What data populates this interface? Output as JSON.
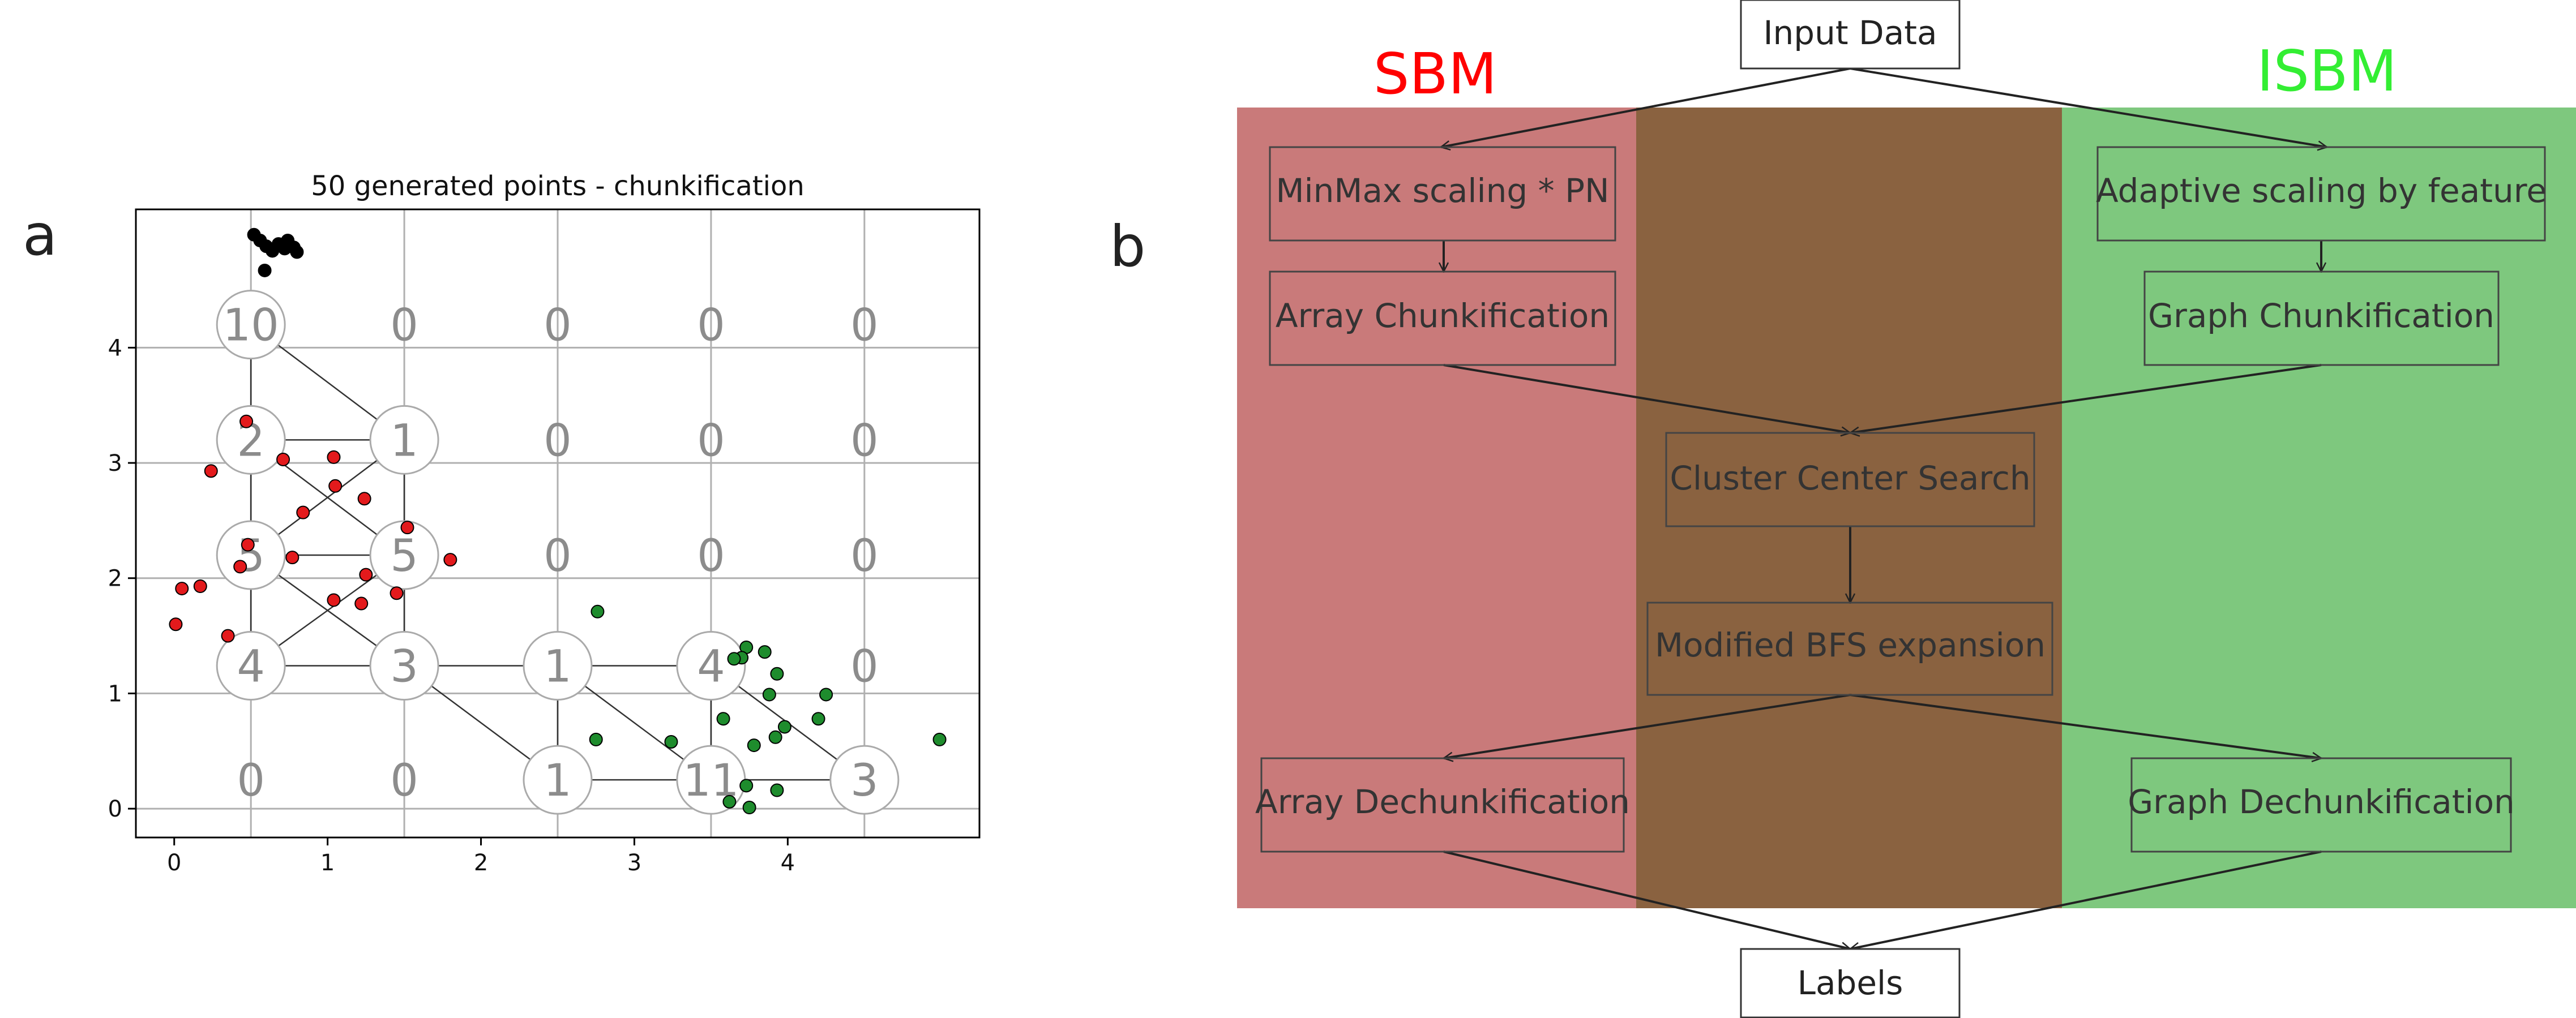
{
  "panel_a": {
    "letter": "a",
    "title": "50 generated points - chunkification",
    "x_ticks": [
      "0",
      "1",
      "2",
      "3",
      "4"
    ],
    "y_ticks": [
      "0",
      "1",
      "2",
      "3",
      "4"
    ],
    "grid_x": [
      0.5,
      1.5,
      2.5,
      3.5,
      4.5
    ],
    "grid_y": [
      0.0,
      1.0,
      2.0,
      3.0,
      4.0
    ],
    "xlim": [
      -0.25,
      5.25
    ],
    "ylim": [
      -0.25,
      5.2
    ],
    "cells": [
      {
        "x": 0.5,
        "y": 4.2,
        "count": "10",
        "circle": true
      },
      {
        "x": 1.5,
        "y": 4.2,
        "count": "0",
        "circle": false
      },
      {
        "x": 2.5,
        "y": 4.2,
        "count": "0",
        "circle": false
      },
      {
        "x": 3.5,
        "y": 4.2,
        "count": "0",
        "circle": false
      },
      {
        "x": 4.5,
        "y": 4.2,
        "count": "0",
        "circle": false
      },
      {
        "x": 0.5,
        "y": 3.2,
        "count": "2",
        "circle": true
      },
      {
        "x": 1.5,
        "y": 3.2,
        "count": "1",
        "circle": true
      },
      {
        "x": 2.5,
        "y": 3.2,
        "count": "0",
        "circle": false
      },
      {
        "x": 3.5,
        "y": 3.2,
        "count": "0",
        "circle": false
      },
      {
        "x": 4.5,
        "y": 3.2,
        "count": "0",
        "circle": false
      },
      {
        "x": 0.5,
        "y": 2.2,
        "count": "5",
        "circle": true
      },
      {
        "x": 1.5,
        "y": 2.2,
        "count": "5",
        "circle": true
      },
      {
        "x": 2.5,
        "y": 2.2,
        "count": "0",
        "circle": false
      },
      {
        "x": 3.5,
        "y": 2.2,
        "count": "0",
        "circle": false
      },
      {
        "x": 4.5,
        "y": 2.2,
        "count": "0",
        "circle": false
      },
      {
        "x": 0.5,
        "y": 1.24,
        "count": "4",
        "circle": true
      },
      {
        "x": 1.5,
        "y": 1.24,
        "count": "3",
        "circle": true
      },
      {
        "x": 2.5,
        "y": 1.24,
        "count": "1",
        "circle": true
      },
      {
        "x": 3.5,
        "y": 1.24,
        "count": "4",
        "circle": true
      },
      {
        "x": 4.5,
        "y": 1.24,
        "count": "0",
        "circle": false
      },
      {
        "x": 0.5,
        "y": 0.25,
        "count": "0",
        "circle": false
      },
      {
        "x": 1.5,
        "y": 0.25,
        "count": "0",
        "circle": false
      },
      {
        "x": 2.5,
        "y": 0.25,
        "count": "1",
        "circle": true
      },
      {
        "x": 3.5,
        "y": 0.25,
        "count": "11",
        "circle": true
      },
      {
        "x": 4.5,
        "y": 0.25,
        "count": "3",
        "circle": true
      }
    ],
    "edges": [
      [
        0.5,
        4.2,
        0.5,
        3.2
      ],
      [
        0.5,
        4.2,
        1.5,
        3.2
      ],
      [
        0.5,
        3.2,
        1.5,
        3.2
      ],
      [
        0.5,
        3.2,
        0.5,
        2.2
      ],
      [
        0.5,
        3.2,
        1.5,
        2.2
      ],
      [
        1.5,
        3.2,
        1.5,
        2.2
      ],
      [
        1.5,
        3.2,
        0.5,
        2.2
      ],
      [
        0.5,
        2.2,
        1.5,
        2.2
      ],
      [
        0.5,
        2.2,
        0.5,
        1.24
      ],
      [
        0.5,
        2.2,
        1.5,
        1.24
      ],
      [
        1.5,
        2.2,
        0.5,
        1.24
      ],
      [
        1.5,
        2.2,
        1.5,
        1.24
      ],
      [
        0.5,
        1.24,
        1.5,
        1.24
      ],
      [
        1.5,
        1.24,
        2.5,
        1.24
      ],
      [
        1.5,
        1.24,
        2.5,
        0.25
      ],
      [
        2.5,
        1.24,
        3.5,
        1.24
      ],
      [
        2.5,
        1.24,
        2.5,
        0.25
      ],
      [
        2.5,
        1.24,
        3.5,
        0.25
      ],
      [
        3.5,
        1.24,
        3.5,
        0.25
      ],
      [
        3.5,
        1.24,
        4.5,
        0.25
      ],
      [
        2.5,
        0.25,
        3.5,
        0.25
      ],
      [
        3.5,
        0.25,
        4.5,
        0.25
      ]
    ],
    "point_colors": {
      "black": "#000000",
      "red": "#e31a1c",
      "green": "#1e8c2d"
    },
    "points": [
      {
        "x": 0.52,
        "y": 4.98,
        "c": "black"
      },
      {
        "x": 0.56,
        "y": 4.93,
        "c": "black"
      },
      {
        "x": 0.6,
        "y": 4.88,
        "c": "black"
      },
      {
        "x": 0.64,
        "y": 4.84,
        "c": "black"
      },
      {
        "x": 0.68,
        "y": 4.9,
        "c": "black"
      },
      {
        "x": 0.72,
        "y": 4.86,
        "c": "black"
      },
      {
        "x": 0.74,
        "y": 4.93,
        "c": "black"
      },
      {
        "x": 0.78,
        "y": 4.87,
        "c": "black"
      },
      {
        "x": 0.8,
        "y": 4.83,
        "c": "black"
      },
      {
        "x": 0.59,
        "y": 4.67,
        "c": "black"
      },
      {
        "x": 0.47,
        "y": 3.36,
        "c": "red"
      },
      {
        "x": 0.71,
        "y": 3.03,
        "c": "red"
      },
      {
        "x": 1.04,
        "y": 3.05,
        "c": "red"
      },
      {
        "x": 0.24,
        "y": 2.93,
        "c": "red"
      },
      {
        "x": 1.05,
        "y": 2.8,
        "c": "red"
      },
      {
        "x": 1.24,
        "y": 2.69,
        "c": "red"
      },
      {
        "x": 0.84,
        "y": 2.57,
        "c": "red"
      },
      {
        "x": 1.52,
        "y": 2.44,
        "c": "red"
      },
      {
        "x": 0.48,
        "y": 2.29,
        "c": "red"
      },
      {
        "x": 0.77,
        "y": 2.18,
        "c": "red"
      },
      {
        "x": 0.43,
        "y": 2.1,
        "c": "red"
      },
      {
        "x": 1.8,
        "y": 2.16,
        "c": "red"
      },
      {
        "x": 1.25,
        "y": 2.03,
        "c": "red"
      },
      {
        "x": 0.05,
        "y": 1.91,
        "c": "red"
      },
      {
        "x": 0.17,
        "y": 1.93,
        "c": "red"
      },
      {
        "x": 1.45,
        "y": 1.87,
        "c": "red"
      },
      {
        "x": 1.04,
        "y": 1.81,
        "c": "red"
      },
      {
        "x": 1.22,
        "y": 1.78,
        "c": "red"
      },
      {
        "x": 0.01,
        "y": 1.6,
        "c": "red"
      },
      {
        "x": 0.35,
        "y": 1.5,
        "c": "red"
      },
      {
        "x": 2.76,
        "y": 1.71,
        "c": "green"
      },
      {
        "x": 3.73,
        "y": 1.4,
        "c": "green"
      },
      {
        "x": 3.85,
        "y": 1.36,
        "c": "green"
      },
      {
        "x": 3.7,
        "y": 1.31,
        "c": "green"
      },
      {
        "x": 3.65,
        "y": 1.3,
        "c": "green"
      },
      {
        "x": 3.93,
        "y": 1.17,
        "c": "green"
      },
      {
        "x": 4.25,
        "y": 0.99,
        "c": "green"
      },
      {
        "x": 3.88,
        "y": 0.99,
        "c": "green"
      },
      {
        "x": 3.58,
        "y": 0.78,
        "c": "green"
      },
      {
        "x": 4.2,
        "y": 0.78,
        "c": "green"
      },
      {
        "x": 3.98,
        "y": 0.71,
        "c": "green"
      },
      {
        "x": 3.92,
        "y": 0.62,
        "c": "green"
      },
      {
        "x": 2.75,
        "y": 0.6,
        "c": "green"
      },
      {
        "x": 3.24,
        "y": 0.58,
        "c": "green"
      },
      {
        "x": 3.78,
        "y": 0.55,
        "c": "green"
      },
      {
        "x": 4.99,
        "y": 0.6,
        "c": "green"
      },
      {
        "x": 3.73,
        "y": 0.2,
        "c": "green"
      },
      {
        "x": 3.93,
        "y": 0.16,
        "c": "green"
      },
      {
        "x": 3.62,
        "y": 0.06,
        "c": "green"
      },
      {
        "x": 3.75,
        "y": 0.01,
        "c": "green"
      }
    ]
  },
  "panel_b": {
    "letter": "b",
    "sbm_title": "SBM",
    "isbm_title": "ISBM",
    "colors": {
      "sbm_title": "#ff0000",
      "isbm_title": "#33ee33",
      "sbm_band": "#c97a7a",
      "shared_band": "#8a6240",
      "isbm_band": "#7ec87e"
    },
    "boxes": {
      "input": "Input Data",
      "minmax": "MinMax scaling * PN",
      "adaptive": "Adaptive scaling by feature",
      "array_chunk": "Array Chunkification",
      "graph_chunk": "Graph Chunkification",
      "cluster": "Cluster Center Search",
      "bfs": "Modified BFS expansion",
      "array_dechunk": "Array Dechunkification",
      "graph_dechunk": "Graph Dechunkification",
      "labels": "Labels"
    }
  }
}
